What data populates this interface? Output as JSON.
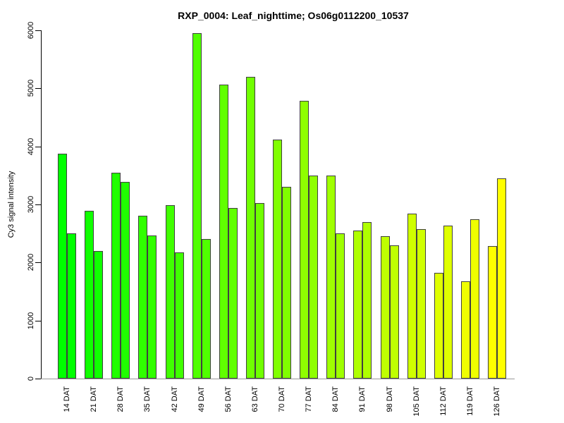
{
  "chart_data": {
    "type": "bar",
    "title": "RXP_0004: Leaf_nighttime; Os06g0112200_10537",
    "xlabel": "",
    "ylabel": "Cy3 signal intensity",
    "categories": [
      "14 DAT",
      "21 DAT",
      "28 DAT",
      "35 DAT",
      "42 DAT",
      "49 DAT",
      "56 DAT",
      "63 DAT",
      "70 DAT",
      "77 DAT",
      "84 DAT",
      "91 DAT",
      "98 DAT",
      "105 DAT",
      "112 DAT",
      "119 DAT",
      "126 DAT"
    ],
    "series": [
      {
        "values": [
          3870,
          2890,
          3550,
          2800,
          2990,
          5950,
          5060,
          5200,
          4120,
          4780,
          3500,
          2550,
          2450,
          2840,
          1820,
          1680,
          2280
        ]
      },
      {
        "values": [
          2500,
          2200,
          3390,
          2470,
          2170,
          2400,
          2940,
          3030,
          3300,
          3500,
          2500,
          2700,
          2300,
          2580,
          2640,
          2740,
          3450
        ]
      }
    ],
    "ylim": [
      0,
      6000
    ],
    "yticks": [
      0,
      1000,
      2000,
      3000,
      4000,
      5000,
      6000
    ],
    "bar_color_ramp": {
      "start": "#00FF00",
      "end": "#FFFF00"
    },
    "bar_border_color": "#404040",
    "axis_color": "#000000",
    "baseline_color": "#999999",
    "grid": false,
    "legend": "none"
  }
}
